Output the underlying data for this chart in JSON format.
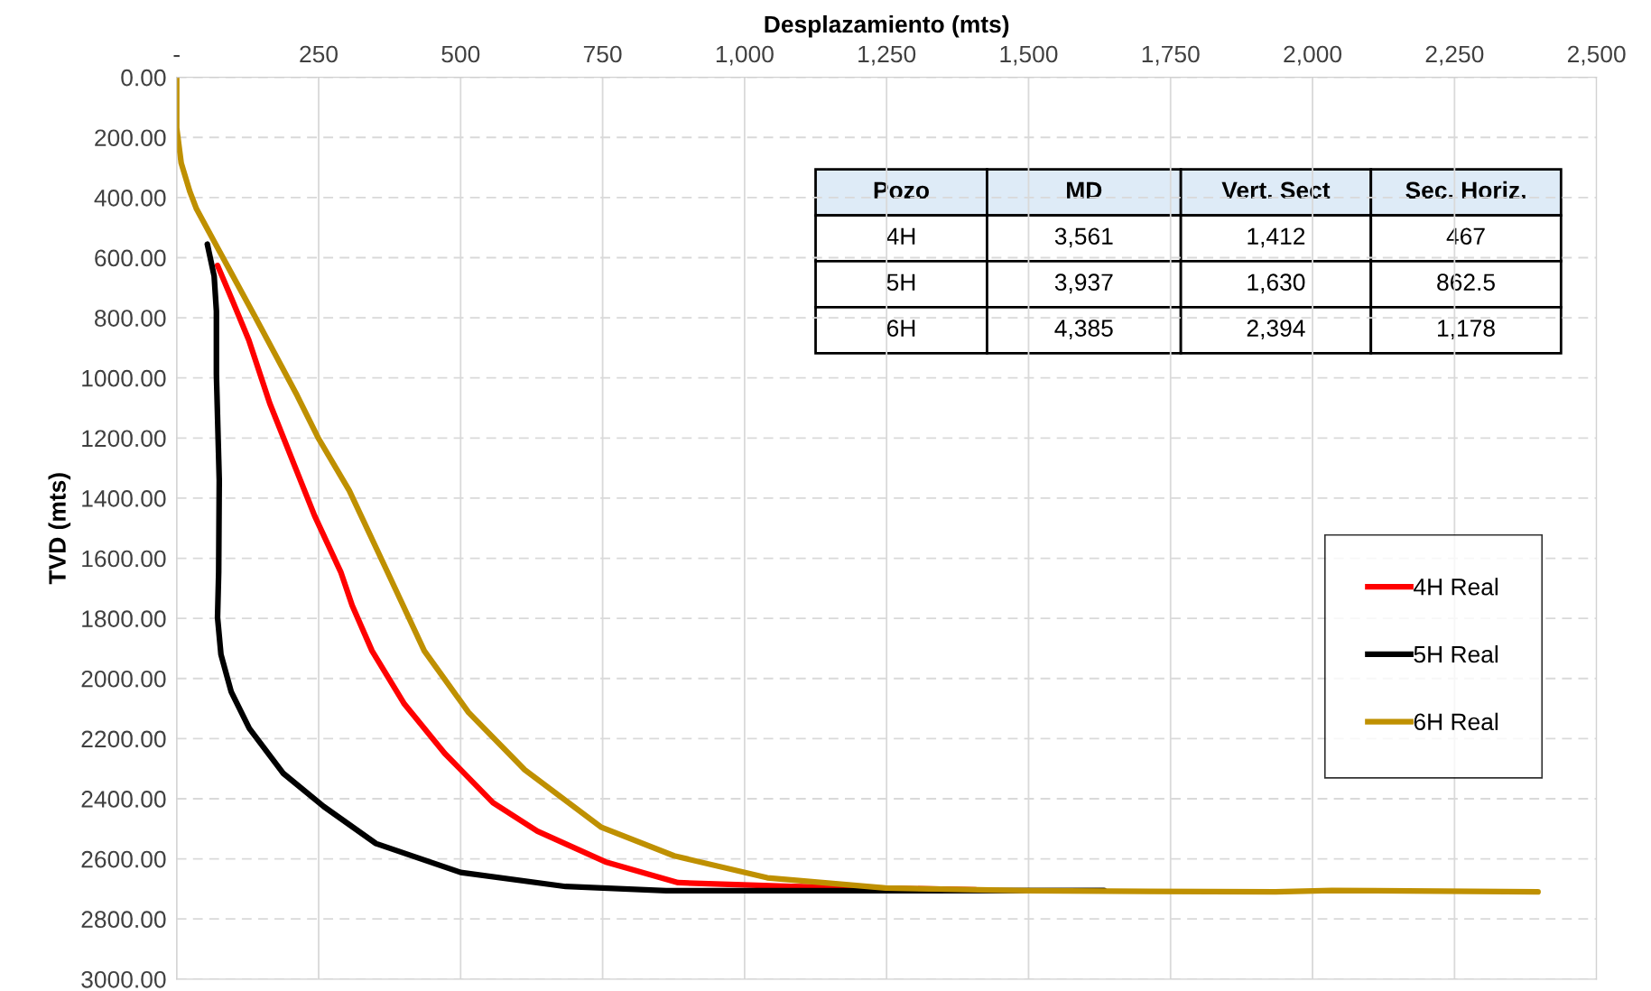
{
  "chart_data": {
    "type": "line",
    "xlabel": "Desplazamiento (mts)",
    "ylabel": "TVD (mts)",
    "xlim": [
      0,
      2500
    ],
    "ylim": [
      3000,
      0
    ],
    "xticks": [
      {
        "value": 0,
        "label": "-"
      },
      250,
      500,
      750,
      {
        "value": 1000,
        "label": "1,000"
      },
      {
        "value": 1250,
        "label": "1,250"
      },
      {
        "value": 1500,
        "label": "1,500"
      },
      {
        "value": 1750,
        "label": "1,750"
      },
      {
        "value": 2000,
        "label": "2,000"
      },
      {
        "value": 2250,
        "label": "2,250"
      },
      {
        "value": 2500,
        "label": "2,500"
      }
    ],
    "yticks": [
      {
        "value": 0,
        "label": "0.00"
      },
      {
        "value": 200,
        "label": "200.00"
      },
      {
        "value": 400,
        "label": "400.00"
      },
      {
        "value": 600,
        "label": "600.00"
      },
      {
        "value": 800,
        "label": "800.00"
      },
      {
        "value": 1000,
        "label": "1000.00"
      },
      {
        "value": 1200,
        "label": "1200.00"
      },
      {
        "value": 1400,
        "label": "1400.00"
      },
      {
        "value": 1600,
        "label": "1600.00"
      },
      {
        "value": 1800,
        "label": "1800.00"
      },
      {
        "value": 2000,
        "label": "2000.00"
      },
      {
        "value": 2200,
        "label": "2200.00"
      },
      {
        "value": 2400,
        "label": "2400.00"
      },
      {
        "value": 2600,
        "label": "2600.00"
      },
      {
        "value": 2800,
        "label": "2800.00"
      },
      {
        "value": 3000,
        "label": "3000.00"
      }
    ],
    "grid": true,
    "legend": "right",
    "line_style": "solid",
    "marker": "none",
    "series": [
      {
        "name": "4H Real",
        "color": "#ff0000",
        "x": [
          72,
          96,
          127,
          164,
          206,
          243,
          289,
          309,
          344,
          401,
          472,
          557,
          635,
          755,
          883,
          1082,
          1407
        ],
        "values": [
          626,
          733,
          874,
          1085,
          1284,
          1459,
          1646,
          1757,
          1908,
          2085,
          2249,
          2413,
          2508,
          2610,
          2679,
          2692,
          2703
        ]
      },
      {
        "name": "5H Real",
        "color": "#000000",
        "x": [
          54,
          66,
          70,
          70,
          75,
          74,
          72,
          78,
          96,
          128,
          188,
          259,
          351,
          500,
          685,
          862,
          1082,
          1633
        ],
        "values": [
          555,
          661,
          778,
          989,
          1340,
          1645,
          1797,
          1920,
          2044,
          2166,
          2316,
          2426,
          2549,
          2645,
          2692,
          2706,
          2706,
          2705
        ]
      },
      {
        "name": "6H Real",
        "color": "#bf9000",
        "x": [
          0,
          0,
          8,
          23,
          35,
          72,
          139,
          212,
          249,
          304,
          371,
          436,
          514,
          613,
          748,
          876,
          1040,
          1248,
          1497,
          1935,
          2034,
          2397
        ],
        "values": [
          0,
          168,
          285,
          379,
          438,
          567,
          800,
          1058,
          1199,
          1375,
          1645,
          1908,
          2113,
          2304,
          2495,
          2590,
          2663,
          2697,
          2706,
          2710,
          2705,
          2710
        ]
      }
    ],
    "annotations": [
      "Pozo",
      "MD",
      "Vert. Sect",
      "Sec. Horiz.",
      "4H",
      "3,561",
      "1,412",
      "467",
      "5H",
      "3,937",
      "1,630",
      "862.5",
      "6H",
      "4,385",
      "2,394",
      "1,178"
    ]
  }
}
